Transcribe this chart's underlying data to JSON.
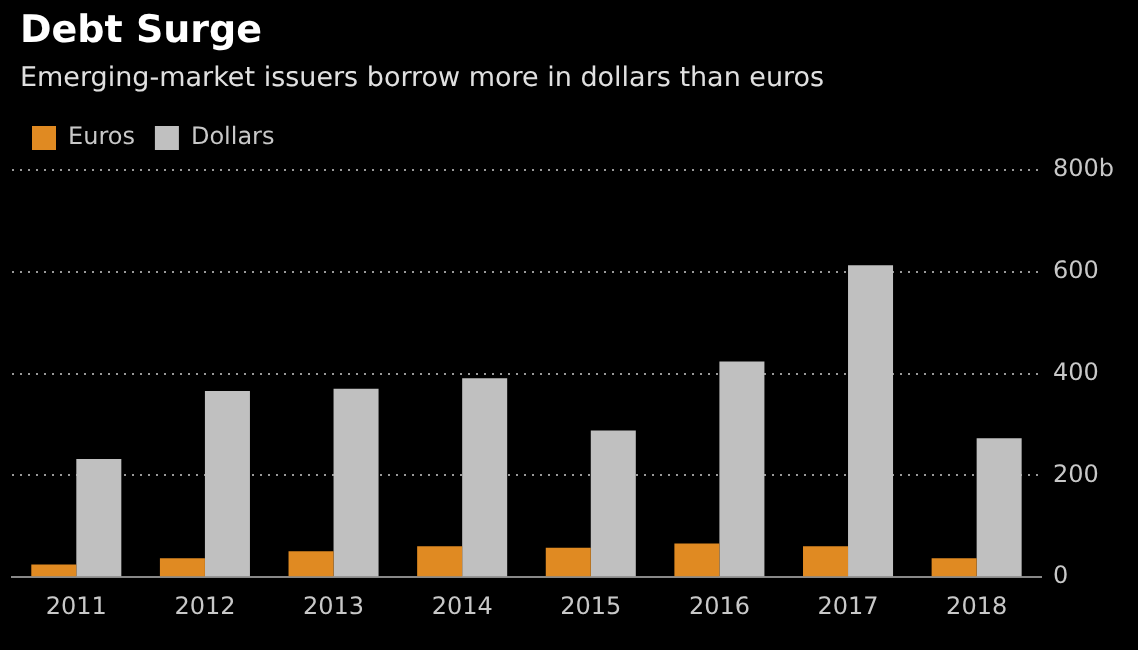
{
  "chart_data": {
    "type": "bar",
    "title": "Debt Surge",
    "subtitle": "Emerging-market issuers borrow more in dollars than euros",
    "categories": [
      "2011",
      "2012",
      "2013",
      "2014",
      "2015",
      "2016",
      "2017",
      "2018"
    ],
    "series": [
      {
        "name": "Euros",
        "color": "#e08a22",
        "values": [
          25,
          37,
          51,
          61,
          58,
          66,
          61,
          37
        ]
      },
      {
        "name": "Dollars",
        "color": "#c0c0c0",
        "values": [
          232,
          366,
          370,
          391,
          288,
          424,
          613,
          273
        ]
      }
    ],
    "ylim": [
      0,
      800
    ],
    "yticks": [
      0,
      200,
      400,
      600,
      {
        "value": 800,
        "label": "800b"
      }
    ],
    "grid": "y",
    "legend": "top left"
  }
}
